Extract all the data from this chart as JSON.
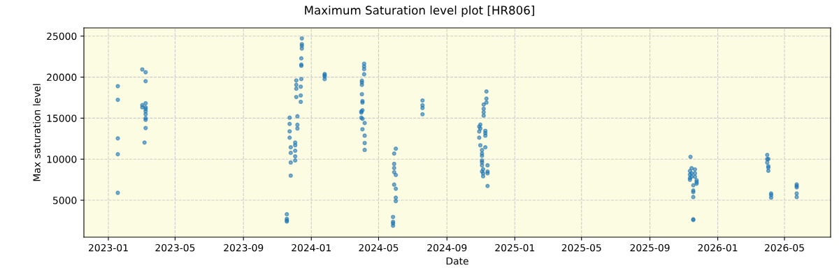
{
  "chart_data": {
    "type": "scatter",
    "title": "Maximum Saturation level plot [HR806]",
    "xlabel": "Date",
    "ylabel": "Max saturation level",
    "xlim": [
      "2022-11-18",
      "2026-07-23"
    ],
    "xticks": [
      {
        "value": "2023-01-01",
        "label": "2023-01"
      },
      {
        "value": "2023-05-01",
        "label": "2023-05"
      },
      {
        "value": "2023-09-01",
        "label": "2023-09"
      },
      {
        "value": "2024-01-01",
        "label": "2024-01"
      },
      {
        "value": "2024-05-01",
        "label": "2024-05"
      },
      {
        "value": "2024-09-01",
        "label": "2024-09"
      },
      {
        "value": "2025-01-01",
        "label": "2025-01"
      },
      {
        "value": "2025-05-01",
        "label": "2025-05"
      },
      {
        "value": "2025-09-01",
        "label": "2025-09"
      },
      {
        "value": "2026-01-01",
        "label": "2026-01"
      },
      {
        "value": "2026-05-01",
        "label": "2026-05"
      }
    ],
    "ylim": [
      500,
      26000
    ],
    "yticks": [
      5000,
      10000,
      15000,
      20000,
      25000
    ],
    "grid": true,
    "marker": "circle",
    "series": [
      {
        "color": "#1f77b4",
        "x": [
          "2023-01-18",
          "2023-01-18",
          "2023-01-18",
          "2023-01-18",
          "2023-01-18",
          "2023-03-03",
          "2023-03-09",
          "2023-03-09",
          "2023-03-09",
          "2023-03-03",
          "2023-03-03",
          "2023-03-09",
          "2023-03-09",
          "2023-03-09",
          "2023-03-09",
          "2023-03-09",
          "2023-03-09",
          "2023-03-09",
          "2023-03-07",
          "2023-11-18",
          "2023-11-18",
          "2023-11-18",
          "2023-11-18",
          "2023-11-23",
          "2023-11-23",
          "2023-11-23",
          "2023-11-23",
          "2023-11-25",
          "2023-11-25",
          "2023-11-25",
          "2023-11-25",
          "2023-12-03",
          "2023-12-03",
          "2023-12-03",
          "2023-12-03",
          "2023-12-03",
          "2023-12-05",
          "2023-12-05",
          "2023-12-05",
          "2023-12-05",
          "2023-12-07",
          "2023-12-07",
          "2023-12-07",
          "2023-12-13",
          "2023-12-13",
          "2023-12-13",
          "2023-12-14",
          "2023-12-14",
          "2023-12-14",
          "2023-12-14",
          "2023-12-15",
          "2023-12-15",
          "2023-12-15",
          "2023-12-15",
          "2024-01-25",
          "2024-01-25",
          "2024-01-25",
          "2024-01-25",
          "2024-04-05",
          "2024-04-05",
          "2024-04-05",
          "2024-04-05",
          "2024-04-01",
          "2024-04-01",
          "2024-04-01",
          "2024-04-01",
          "2024-04-02",
          "2024-04-02",
          "2024-03-31",
          "2024-03-31",
          "2024-04-02",
          "2024-03-31",
          "2024-04-02",
          "2024-04-06",
          "2024-04-02",
          "2024-04-06",
          "2024-04-06",
          "2024-04-06",
          "2024-06-01",
          "2024-05-29",
          "2024-05-29",
          "2024-05-29",
          "2024-05-29",
          "2024-06-01",
          "2024-05-29",
          "2024-06-01",
          "2024-06-01",
          "2024-06-01",
          "2024-05-27",
          "2024-05-27",
          "2024-05-27",
          "2024-05-27",
          "2024-07-19",
          "2024-07-19",
          "2024-07-19",
          "2024-07-19",
          "2024-11-11",
          "2024-11-11",
          "2024-11-11",
          "2024-11-06",
          "2024-11-06",
          "2024-11-06",
          "2024-11-06",
          "2024-10-31",
          "2024-10-29",
          "2024-10-29",
          "2024-10-29",
          "2024-10-31",
          "2024-11-09",
          "2024-11-09",
          "2024-11-09",
          "2024-10-31",
          "2024-11-09",
          "2024-11-03",
          "2024-11-03",
          "2024-11-03",
          "2024-11-03",
          "2024-11-03",
          "2024-11-03",
          "2024-11-13",
          "2024-11-13",
          "2024-11-13",
          "2024-11-13",
          "2024-11-03",
          "2024-11-05",
          "2024-11-05",
          "2024-11-05",
          "2025-11-13",
          "2025-11-12",
          "2025-11-12",
          "2025-11-12",
          "2025-11-12",
          "2025-11-15",
          "2025-11-15",
          "2025-11-15",
          "2025-11-21",
          "2025-11-21",
          "2025-11-21",
          "2025-11-24",
          "2025-11-24",
          "2025-11-24",
          "2025-11-18",
          "2025-11-18",
          "2025-11-18",
          "2025-11-18",
          "2025-11-18",
          "2025-11-18",
          "2026-03-31",
          "2026-03-31",
          "2026-03-31",
          "2026-04-02",
          "2026-04-02",
          "2026-04-02",
          "2026-04-02",
          "2026-04-07",
          "2026-04-07",
          "2026-04-07",
          "2026-05-23",
          "2026-05-23",
          "2026-05-23",
          "2026-05-23",
          "2026-05-23"
        ],
        "values": [
          18900,
          17240,
          12540,
          10600,
          5900,
          20940,
          20600,
          19510,
          16820,
          16600,
          16320,
          16320,
          16120,
          15840,
          15480,
          15000,
          14800,
          13800,
          12030,
          3290,
          2730,
          2540,
          2400,
          15060,
          14300,
          13400,
          12620,
          11450,
          10770,
          9600,
          8000,
          12030,
          11700,
          11030,
          10350,
          9850,
          19600,
          19060,
          18590,
          17580,
          15230,
          14190,
          13740,
          18840,
          17770,
          16990,
          22290,
          21530,
          21390,
          19760,
          24720,
          24020,
          23820,
          23490,
          20380,
          20240,
          20070,
          19760,
          21640,
          21300,
          20970,
          20350,
          19570,
          19350,
          19060,
          17920,
          17080,
          16910,
          15820,
          15680,
          15960,
          15060,
          14920,
          14410,
          13650,
          12870,
          11970,
          11130,
          11280,
          10690,
          9430,
          8930,
          8420,
          8080,
          6900,
          6400,
          5310,
          4890,
          2960,
          2370,
          2180,
          1890,
          17160,
          16570,
          16240,
          15480,
          18250,
          17380,
          16910,
          16660,
          16150,
          15730,
          15310,
          14220,
          13970,
          13380,
          12620,
          13740,
          13460,
          13180,
          12870,
          11700,
          11450,
          11110,
          10690,
          10410,
          9850,
          9620,
          9260,
          9260,
          8500,
          8280,
          6740,
          8500,
          8780,
          8280,
          7920,
          10290,
          8560,
          8130,
          7710,
          7490,
          8900,
          8280,
          7860,
          8760,
          8280,
          7860,
          7440,
          7210,
          7020,
          6820,
          6180,
          5990,
          5390,
          2670,
          2590,
          10520,
          10020,
          9600,
          10020,
          9150,
          8980,
          8590,
          5820,
          5630,
          5310,
          6930,
          6740,
          6570,
          5820,
          5390
        ]
      }
    ]
  }
}
